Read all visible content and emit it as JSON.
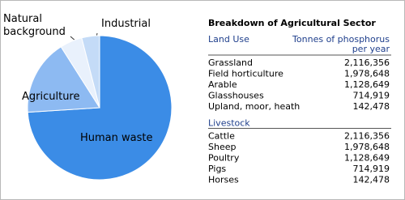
{
  "chart_data": {
    "type": "pie",
    "categories": [
      "Human waste",
      "Agriculture",
      "Natural background",
      "Industrial"
    ],
    "values": [
      74,
      17,
      5,
      4
    ],
    "colors": [
      "#3b8ce6",
      "#8dbaf2",
      "#e9f1fc",
      "#c4dbf7"
    ]
  },
  "table": {
    "title": "Breakdown of Agricultural Sector",
    "header": [
      "Land Use",
      "Tonnes of phosphorus",
      "per year"
    ],
    "sections": [
      {
        "heading": "Land Use",
        "rows": [
          [
            "Grassland",
            "2,116,356"
          ],
          [
            "Field horticulture",
            "1,978,648"
          ],
          [
            "Arable",
            "1,128,649"
          ],
          [
            "Glasshouses",
            "714,919"
          ],
          [
            "Upland, moor, heath",
            "142,478"
          ]
        ]
      },
      {
        "heading": "Livestock",
        "rows": [
          [
            "Cattle",
            "2,116,356"
          ],
          [
            "Sheep",
            "1,978,648"
          ],
          [
            "Poultry",
            "1,128,649"
          ],
          [
            "Pigs",
            "714,919"
          ],
          [
            "Horses",
            "142,478"
          ]
        ]
      }
    ]
  }
}
